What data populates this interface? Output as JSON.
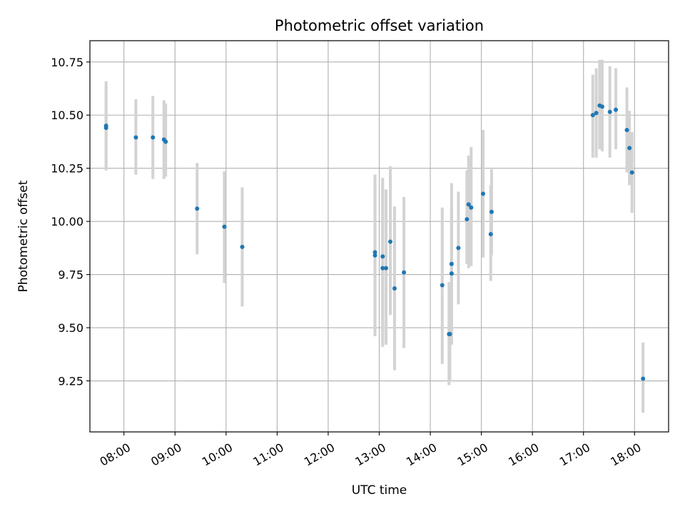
{
  "chart_data": {
    "type": "scatter",
    "title": "Photometric offset variation",
    "xlabel": "UTC time",
    "ylabel": "Photometric offset",
    "grid": true,
    "x_unit": "hours UTC",
    "xlim": [
      "07:20",
      "18:40"
    ],
    "ylim": [
      9.01,
      10.85
    ],
    "x_ticks": [
      "08:00",
      "09:00",
      "10:00",
      "11:00",
      "12:00",
      "13:00",
      "14:00",
      "15:00",
      "16:00",
      "17:00",
      "18:00"
    ],
    "y_ticks": [
      "9.25",
      "9.50",
      "9.75",
      "10.00",
      "10.25",
      "10.50",
      "10.75"
    ],
    "colors": {
      "point": "#1f77b4",
      "errorbar": "#d3d3d3",
      "grid": "#b0b0b0"
    },
    "points": [
      {
        "time": "07:39",
        "y": 10.45,
        "lo": 10.24,
        "hi": 10.66
      },
      {
        "time": "07:39",
        "y": 10.44,
        "lo": 10.24,
        "hi": 10.64
      },
      {
        "time": "08:14",
        "y": 10.395,
        "lo": 10.22,
        "hi": 10.575
      },
      {
        "time": "08:34",
        "y": 10.395,
        "lo": 10.2,
        "hi": 10.59
      },
      {
        "time": "08:47",
        "y": 10.385,
        "lo": 10.2,
        "hi": 10.57
      },
      {
        "time": "08:49",
        "y": 10.375,
        "lo": 10.21,
        "hi": 10.555
      },
      {
        "time": "09:26",
        "y": 10.06,
        "lo": 9.845,
        "hi": 10.275
      },
      {
        "time": "09:58",
        "y": 9.975,
        "lo": 9.71,
        "hi": 10.235
      },
      {
        "time": "10:19",
        "y": 9.88,
        "lo": 9.6,
        "hi": 10.16
      },
      {
        "time": "12:55",
        "y": 9.855,
        "lo": 9.46,
        "hi": 10.22
      },
      {
        "time": "12:55",
        "y": 9.84,
        "lo": 9.5,
        "hi": 10.18
      },
      {
        "time": "13:04",
        "y": 9.835,
        "lo": 9.41,
        "hi": 10.205
      },
      {
        "time": "13:04",
        "y": 9.78,
        "lo": 9.42,
        "hi": 10.16
      },
      {
        "time": "13:08",
        "y": 9.78,
        "lo": 9.42,
        "hi": 10.15
      },
      {
        "time": "13:13",
        "y": 9.905,
        "lo": 9.56,
        "hi": 10.26
      },
      {
        "time": "13:18",
        "y": 9.685,
        "lo": 9.3,
        "hi": 10.07
      },
      {
        "time": "13:29",
        "y": 9.76,
        "lo": 9.405,
        "hi": 10.115
      },
      {
        "time": "14:14",
        "y": 9.7,
        "lo": 9.33,
        "hi": 10.065
      },
      {
        "time": "14:22",
        "y": 9.47,
        "lo": 9.23,
        "hi": 9.715
      },
      {
        "time": "14:23",
        "y": 9.47,
        "lo": 9.25,
        "hi": 9.7
      },
      {
        "time": "14:25",
        "y": 9.8,
        "lo": 9.42,
        "hi": 10.18
      },
      {
        "time": "14:25",
        "y": 9.755,
        "lo": 9.44,
        "hi": 10.07
      },
      {
        "time": "14:33",
        "y": 9.875,
        "lo": 9.61,
        "hi": 10.14
      },
      {
        "time": "14:43",
        "y": 10.01,
        "lo": 9.8,
        "hi": 10.24
      },
      {
        "time": "14:45",
        "y": 10.08,
        "lo": 9.78,
        "hi": 10.31
      },
      {
        "time": "14:48",
        "y": 10.065,
        "lo": 9.79,
        "hi": 10.35
      },
      {
        "time": "15:02",
        "y": 10.13,
        "lo": 9.83,
        "hi": 10.43
      },
      {
        "time": "15:11",
        "y": 9.94,
        "lo": 9.72,
        "hi": 10.17
      },
      {
        "time": "15:12",
        "y": 10.045,
        "lo": 9.84,
        "hi": 10.245
      },
      {
        "time": "17:11",
        "y": 10.5,
        "lo": 10.3,
        "hi": 10.69
      },
      {
        "time": "17:15",
        "y": 10.51,
        "lo": 10.3,
        "hi": 10.72
      },
      {
        "time": "17:19",
        "y": 10.545,
        "lo": 10.34,
        "hi": 10.76
      },
      {
        "time": "17:22",
        "y": 10.54,
        "lo": 10.33,
        "hi": 10.76
      },
      {
        "time": "17:31",
        "y": 10.515,
        "lo": 10.3,
        "hi": 10.73
      },
      {
        "time": "17:38",
        "y": 10.525,
        "lo": 10.34,
        "hi": 10.72
      },
      {
        "time": "17:51",
        "y": 10.43,
        "lo": 10.23,
        "hi": 10.63
      },
      {
        "time": "17:54",
        "y": 10.345,
        "lo": 10.17,
        "hi": 10.52
      },
      {
        "time": "17:57",
        "y": 10.23,
        "lo": 10.04,
        "hi": 10.42
      },
      {
        "time": "18:10",
        "y": 9.26,
        "lo": 9.1,
        "hi": 9.43
      }
    ]
  }
}
